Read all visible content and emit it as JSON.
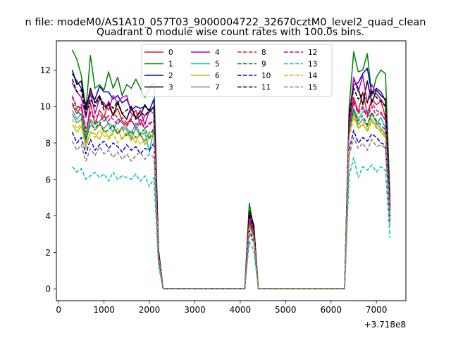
{
  "figure": {
    "suptitle": "n file: modeM0/AS1A10_057T03_9000004722_32670cztM0_level2_quad_clean",
    "xoffset_label": "+3.718e8"
  },
  "chart_data": {
    "type": "line",
    "title": "Quadrant 0 module wise count rates with 100.0s bins.",
    "xlabel": "",
    "ylabel": "",
    "xlim": [
      -50,
      7650
    ],
    "ylim": [
      -0.65,
      13.6
    ],
    "xticks": [
      0,
      1000,
      2000,
      3000,
      4000,
      5000,
      6000,
      7000
    ],
    "yticks": [
      0,
      2,
      4,
      6,
      8,
      10,
      12
    ],
    "grid": false,
    "legend_position": "top-center",
    "legend_columns": 4,
    "x": [
      300,
      400,
      500,
      600,
      700,
      800,
      900,
      1000,
      1100,
      1200,
      1300,
      1400,
      1500,
      1600,
      1700,
      1800,
      1900,
      2000,
      2100,
      2200,
      2300,
      2400,
      2500,
      2600,
      2700,
      2800,
      2900,
      3000,
      3100,
      3200,
      3300,
      3400,
      3500,
      3600,
      3700,
      3800,
      3900,
      4000,
      4100,
      4200,
      4300,
      4400,
      4500,
      4600,
      4700,
      4800,
      4900,
      5000,
      5100,
      5200,
      5300,
      5400,
      5500,
      5600,
      5700,
      5800,
      5900,
      6000,
      6100,
      6200,
      6300,
      6400,
      6500,
      6600,
      6700,
      6800,
      6900,
      7000,
      7100,
      7200,
      7300
    ],
    "series": [
      {
        "name": "0",
        "color": "#e31a1c",
        "dash": "solid",
        "values": [
          10.1,
          9.6,
          10.0,
          8.2,
          10.2,
          9.0,
          9.8,
          9.4,
          10.3,
          9.5,
          9.9,
          9.2,
          9.0,
          9.4,
          9.8,
          9.0,
          9.5,
          9.7,
          10.0,
          2.0,
          0,
          0,
          0,
          0,
          0,
          0,
          0,
          0,
          0,
          0,
          0,
          0,
          0,
          0,
          0,
          0,
          0,
          0,
          0,
          3.7,
          3.1,
          0,
          0,
          0,
          0,
          0,
          0,
          0,
          0,
          0,
          0,
          0,
          0,
          0,
          0,
          0,
          0,
          0,
          0,
          0,
          0,
          9.0,
          10.5,
          9.7,
          10.8,
          9.6,
          10.4,
          10.1,
          10.3,
          9.4,
          4.3
        ]
      },
      {
        "name": "1",
        "color": "#008000",
        "dash": "solid",
        "values": [
          13.1,
          12.6,
          11.7,
          9.8,
          12.8,
          11.0,
          11.2,
          10.9,
          11.9,
          11.0,
          11.6,
          10.6,
          11.2,
          11.0,
          11.5,
          11.0,
          10.5,
          11.0,
          11.3,
          2.2,
          0,
          0,
          0,
          0,
          0,
          0,
          0,
          0,
          0,
          0,
          0,
          0,
          0,
          0,
          0,
          0,
          0,
          0,
          0,
          4.7,
          3.3,
          0,
          0,
          0,
          0,
          0,
          0,
          0,
          0,
          0,
          0,
          0,
          0,
          0,
          0,
          0,
          0,
          0,
          0,
          0,
          0,
          10.0,
          13.0,
          11.9,
          12.0,
          12.9,
          10.6,
          11.6,
          12.0,
          11.8,
          5.0
        ]
      },
      {
        "name": "2",
        "color": "#0000cc",
        "dash": "solid",
        "values": [
          11.8,
          11.4,
          11.0,
          10.1,
          10.6,
          10.4,
          11.1,
          10.8,
          10.8,
          10.4,
          10.6,
          10.2,
          10.4,
          9.8,
          10.0,
          9.9,
          10.0,
          9.8,
          10.4,
          2.1,
          0,
          0,
          0,
          0,
          0,
          0,
          0,
          0,
          0,
          0,
          0,
          0,
          0,
          0,
          0,
          0,
          0,
          0,
          0,
          4.0,
          3.3,
          0,
          0,
          0,
          0,
          0,
          0,
          0,
          0,
          0,
          0,
          0,
          0,
          0,
          0,
          0,
          0,
          0,
          0,
          0,
          0,
          9.2,
          11.2,
          11.3,
          11.8,
          12.1,
          10.7,
          11.0,
          10.8,
          10.3,
          4.6
        ]
      },
      {
        "name": "3",
        "color": "#000000",
        "dash": "solid",
        "values": [
          12.0,
          11.2,
          11.4,
          9.8,
          11.0,
          10.2,
          10.6,
          10.0,
          10.1,
          9.5,
          10.2,
          9.6,
          9.3,
          10.0,
          9.3,
          9.5,
          10.1,
          9.7,
          10.0,
          2.0,
          0,
          0,
          0,
          0,
          0,
          0,
          0,
          0,
          0,
          0,
          0,
          0,
          0,
          0,
          0,
          0,
          0,
          0,
          0,
          4.3,
          3.5,
          0,
          0,
          0,
          0,
          0,
          0,
          0,
          0,
          0,
          0,
          0,
          0,
          0,
          0,
          0,
          0,
          0,
          0,
          0,
          0,
          9.5,
          11.5,
          11.0,
          10.1,
          11.4,
          10.2,
          10.9,
          10.6,
          10.4,
          4.4
        ]
      },
      {
        "name": "4",
        "color": "#bf00bf",
        "dash": "solid",
        "values": [
          11.3,
          10.8,
          10.5,
          9.4,
          10.8,
          9.6,
          10.4,
          10.2,
          9.8,
          10.6,
          10.2,
          10.5,
          10.6,
          9.6,
          9.4,
          9.8,
          9.0,
          9.8,
          9.6,
          1.9,
          0,
          0,
          0,
          0,
          0,
          0,
          0,
          0,
          0,
          0,
          0,
          0,
          0,
          0,
          0,
          0,
          0,
          0,
          0,
          4.0,
          3.2,
          0,
          0,
          0,
          0,
          0,
          0,
          0,
          0,
          0,
          0,
          0,
          0,
          0,
          0,
          0,
          0,
          0,
          0,
          0,
          0,
          9.2,
          11.6,
          10.8,
          11.7,
          10.2,
          11.2,
          10.7,
          10.4,
          10.0,
          4.4
        ]
      },
      {
        "name": "5",
        "color": "#00bfbf",
        "dash": "solid",
        "values": [
          9.8,
          9.3,
          9.6,
          8.4,
          9.3,
          9.0,
          9.2,
          9.5,
          9.0,
          8.6,
          9.3,
          9.1,
          8.8,
          8.5,
          9.1,
          8.4,
          8.6,
          7.5,
          8.8,
          1.8,
          0,
          0,
          0,
          0,
          0,
          0,
          0,
          0,
          0,
          0,
          0,
          0,
          0,
          0,
          0,
          0,
          0,
          0,
          0,
          3.6,
          2.9,
          0,
          0,
          0,
          0,
          0,
          0,
          0,
          0,
          0,
          0,
          0,
          0,
          0,
          0,
          0,
          0,
          0,
          0,
          0,
          0,
          8.8,
          9.9,
          9.3,
          9.7,
          9.8,
          9.2,
          9.0,
          9.4,
          8.8,
          4.0
        ]
      },
      {
        "name": "6",
        "color": "#bfbf00",
        "dash": "solid",
        "values": [
          9.0,
          8.6,
          8.9,
          7.8,
          8.6,
          8.5,
          8.2,
          8.7,
          8.3,
          8.6,
          8.8,
          8.2,
          8.5,
          8.4,
          8.0,
          8.6,
          7.9,
          8.3,
          8.5,
          1.7,
          0,
          0,
          0,
          0,
          0,
          0,
          0,
          0,
          0,
          0,
          0,
          0,
          0,
          0,
          0,
          0,
          0,
          0,
          0,
          3.5,
          2.8,
          0,
          0,
          0,
          0,
          0,
          0,
          0,
          0,
          0,
          0,
          0,
          0,
          0,
          0,
          0,
          0,
          0,
          0,
          0,
          0,
          8.5,
          9.6,
          8.8,
          9.0,
          8.7,
          9.3,
          8.9,
          8.6,
          8.3,
          3.9
        ]
      },
      {
        "name": "7",
        "color": "#808080",
        "dash": "solid",
        "values": [
          9.6,
          9.1,
          9.3,
          8.0,
          9.2,
          8.7,
          9.0,
          8.8,
          9.1,
          8.9,
          8.5,
          8.9,
          8.7,
          8.2,
          8.8,
          8.4,
          8.1,
          8.6,
          8.6,
          1.8,
          0,
          0,
          0,
          0,
          0,
          0,
          0,
          0,
          0,
          0,
          0,
          0,
          0,
          0,
          0,
          0,
          0,
          0,
          0,
          3.6,
          2.9,
          0,
          0,
          0,
          0,
          0,
          0,
          0,
          0,
          0,
          0,
          0,
          0,
          0,
          0,
          0,
          0,
          0,
          0,
          0,
          0,
          8.6,
          9.8,
          9.0,
          9.3,
          8.9,
          9.6,
          9.1,
          8.8,
          8.5,
          4.0
        ]
      },
      {
        "name": "8",
        "color": "#e31a1c",
        "dash": "dashed",
        "values": [
          10.6,
          10.0,
          9.9,
          8.6,
          9.6,
          9.3,
          9.0,
          9.5,
          9.2,
          9.6,
          9.4,
          9.1,
          8.9,
          9.3,
          8.8,
          9.1,
          8.8,
          9.0,
          9.3,
          1.9,
          0,
          0,
          0,
          0,
          0,
          0,
          0,
          0,
          0,
          0,
          0,
          0,
          0,
          0,
          0,
          0,
          0,
          0,
          0,
          3.8,
          3.0,
          0,
          0,
          0,
          0,
          0,
          0,
          0,
          0,
          0,
          0,
          0,
          0,
          0,
          0,
          0,
          0,
          0,
          0,
          0,
          0,
          9.0,
          10.2,
          9.6,
          9.9,
          9.4,
          10.0,
          9.5,
          9.7,
          9.2,
          4.2
        ]
      },
      {
        "name": "9",
        "color": "#008000",
        "dash": "dashed",
        "values": [
          10.2,
          9.8,
          9.5,
          8.2,
          9.0,
          8.8,
          9.1,
          8.6,
          8.7,
          9.0,
          8.5,
          8.8,
          8.4,
          8.7,
          8.3,
          8.5,
          8.8,
          8.2,
          8.9,
          1.8,
          0,
          0,
          0,
          0,
          0,
          0,
          0,
          0,
          0,
          0,
          0,
          0,
          0,
          0,
          0,
          0,
          0,
          0,
          0,
          3.6,
          2.9,
          0,
          0,
          0,
          0,
          0,
          0,
          0,
          0,
          0,
          0,
          0,
          0,
          0,
          0,
          0,
          0,
          0,
          0,
          0,
          0,
          8.8,
          9.8,
          9.2,
          9.5,
          9.0,
          9.7,
          9.2,
          9.0,
          8.7,
          4.1
        ]
      },
      {
        "name": "10",
        "color": "#0000cc",
        "dash": "dashed",
        "values": [
          8.6,
          8.0,
          8.3,
          7.4,
          8.2,
          7.6,
          7.9,
          8.1,
          7.7,
          8.0,
          7.8,
          7.5,
          7.9,
          7.6,
          7.8,
          7.4,
          7.7,
          7.6,
          8.0,
          1.6,
          0,
          0,
          0,
          0,
          0,
          0,
          0,
          0,
          0,
          0,
          0,
          0,
          0,
          0,
          0,
          0,
          0,
          0,
          0,
          3.2,
          2.6,
          0,
          0,
          0,
          0,
          0,
          0,
          0,
          0,
          0,
          0,
          0,
          0,
          0,
          0,
          0,
          0,
          0,
          0,
          0,
          0,
          7.6,
          8.7,
          8.0,
          8.3,
          8.1,
          8.5,
          8.3,
          8.0,
          7.9,
          3.7
        ]
      },
      {
        "name": "11",
        "color": "#000000",
        "dash": "dashed",
        "values": [
          11.5,
          10.8,
          10.9,
          9.5,
          10.4,
          10.0,
          10.5,
          9.8,
          10.2,
          9.9,
          10.3,
          9.6,
          9.8,
          10.0,
          9.4,
          9.7,
          9.5,
          9.8,
          9.9,
          2.0,
          0,
          0,
          0,
          0,
          0,
          0,
          0,
          0,
          0,
          0,
          0,
          0,
          0,
          0,
          0,
          0,
          0,
          0,
          0,
          4.1,
          3.3,
          0,
          0,
          0,
          0,
          0,
          0,
          0,
          0,
          0,
          0,
          0,
          0,
          0,
          0,
          0,
          0,
          0,
          0,
          0,
          0,
          9.4,
          11.0,
          10.4,
          10.7,
          10.2,
          10.9,
          10.5,
          10.3,
          10.0,
          4.5
        ]
      },
      {
        "name": "12",
        "color": "#bf00bf",
        "dash": "dashed",
        "values": [
          10.5,
          9.9,
          10.1,
          8.8,
          9.7,
          9.4,
          9.6,
          9.2,
          9.5,
          9.3,
          9.0,
          9.4,
          9.1,
          9.2,
          8.9,
          9.3,
          8.8,
          9.1,
          9.2,
          1.9,
          0,
          0,
          0,
          0,
          0,
          0,
          0,
          0,
          0,
          0,
          0,
          0,
          0,
          0,
          0,
          0,
          0,
          0,
          0,
          3.8,
          3.0,
          0,
          0,
          0,
          0,
          0,
          0,
          0,
          0,
          0,
          0,
          0,
          0,
          0,
          0,
          0,
          0,
          0,
          0,
          0,
          0,
          9.0,
          10.3,
          9.7,
          10.0,
          9.5,
          10.2,
          9.8,
          9.6,
          9.3,
          4.2
        ]
      },
      {
        "name": "13",
        "color": "#00bfbf",
        "dash": "dashed",
        "values": [
          6.7,
          6.4,
          6.6,
          6.0,
          6.2,
          6.4,
          6.1,
          6.3,
          5.9,
          6.4,
          6.0,
          6.2,
          6.1,
          6.0,
          6.3,
          5.9,
          6.2,
          5.6,
          6.1,
          1.3,
          0,
          0,
          0,
          0,
          0,
          0,
          0,
          0,
          0,
          0,
          0,
          0,
          0,
          0,
          0,
          0,
          0,
          0,
          0,
          2.6,
          2.1,
          0,
          0,
          0,
          0,
          0,
          0,
          0,
          0,
          0,
          0,
          0,
          0,
          0,
          0,
          0,
          0,
          0,
          0,
          0,
          0,
          6.2,
          7.2,
          6.1,
          6.7,
          6.5,
          6.8,
          6.4,
          6.7,
          6.5,
          2.8
        ]
      },
      {
        "name": "14",
        "color": "#bfbf00",
        "dash": "dashed",
        "values": [
          9.3,
          8.8,
          9.0,
          7.7,
          8.6,
          8.3,
          8.7,
          8.4,
          8.2,
          8.5,
          8.0,
          8.3,
          8.6,
          8.1,
          8.4,
          7.9,
          8.2,
          8.5,
          8.3,
          1.7,
          0,
          0,
          0,
          0,
          0,
          0,
          0,
          0,
          0,
          0,
          0,
          0,
          0,
          0,
          0,
          0,
          0,
          0,
          0,
          3.4,
          2.8,
          0,
          0,
          0,
          0,
          0,
          0,
          0,
          0,
          0,
          0,
          0,
          0,
          0,
          0,
          0,
          0,
          0,
          0,
          0,
          0,
          8.3,
          9.4,
          8.8,
          9.1,
          8.6,
          9.2,
          8.8,
          8.7,
          8.4,
          3.9
        ]
      },
      {
        "name": "15",
        "color": "#808080",
        "dash": "dashed",
        "values": [
          8.1,
          7.6,
          7.9,
          7.0,
          7.7,
          7.3,
          7.8,
          7.4,
          7.6,
          7.2,
          7.5,
          7.1,
          7.4,
          7.0,
          7.3,
          7.5,
          7.1,
          7.4,
          7.2,
          1.5,
          0,
          0,
          0,
          0,
          0,
          0,
          0,
          0,
          0,
          0,
          0,
          0,
          0,
          0,
          0,
          0,
          0,
          0,
          0,
          3.0,
          2.5,
          0,
          0,
          0,
          0,
          0,
          0,
          0,
          0,
          0,
          0,
          0,
          0,
          0,
          0,
          0,
          0,
          0,
          0,
          0,
          0,
          7.3,
          8.3,
          7.7,
          8.0,
          7.6,
          8.2,
          7.8,
          7.9,
          7.7,
          3.5
        ]
      }
    ]
  }
}
